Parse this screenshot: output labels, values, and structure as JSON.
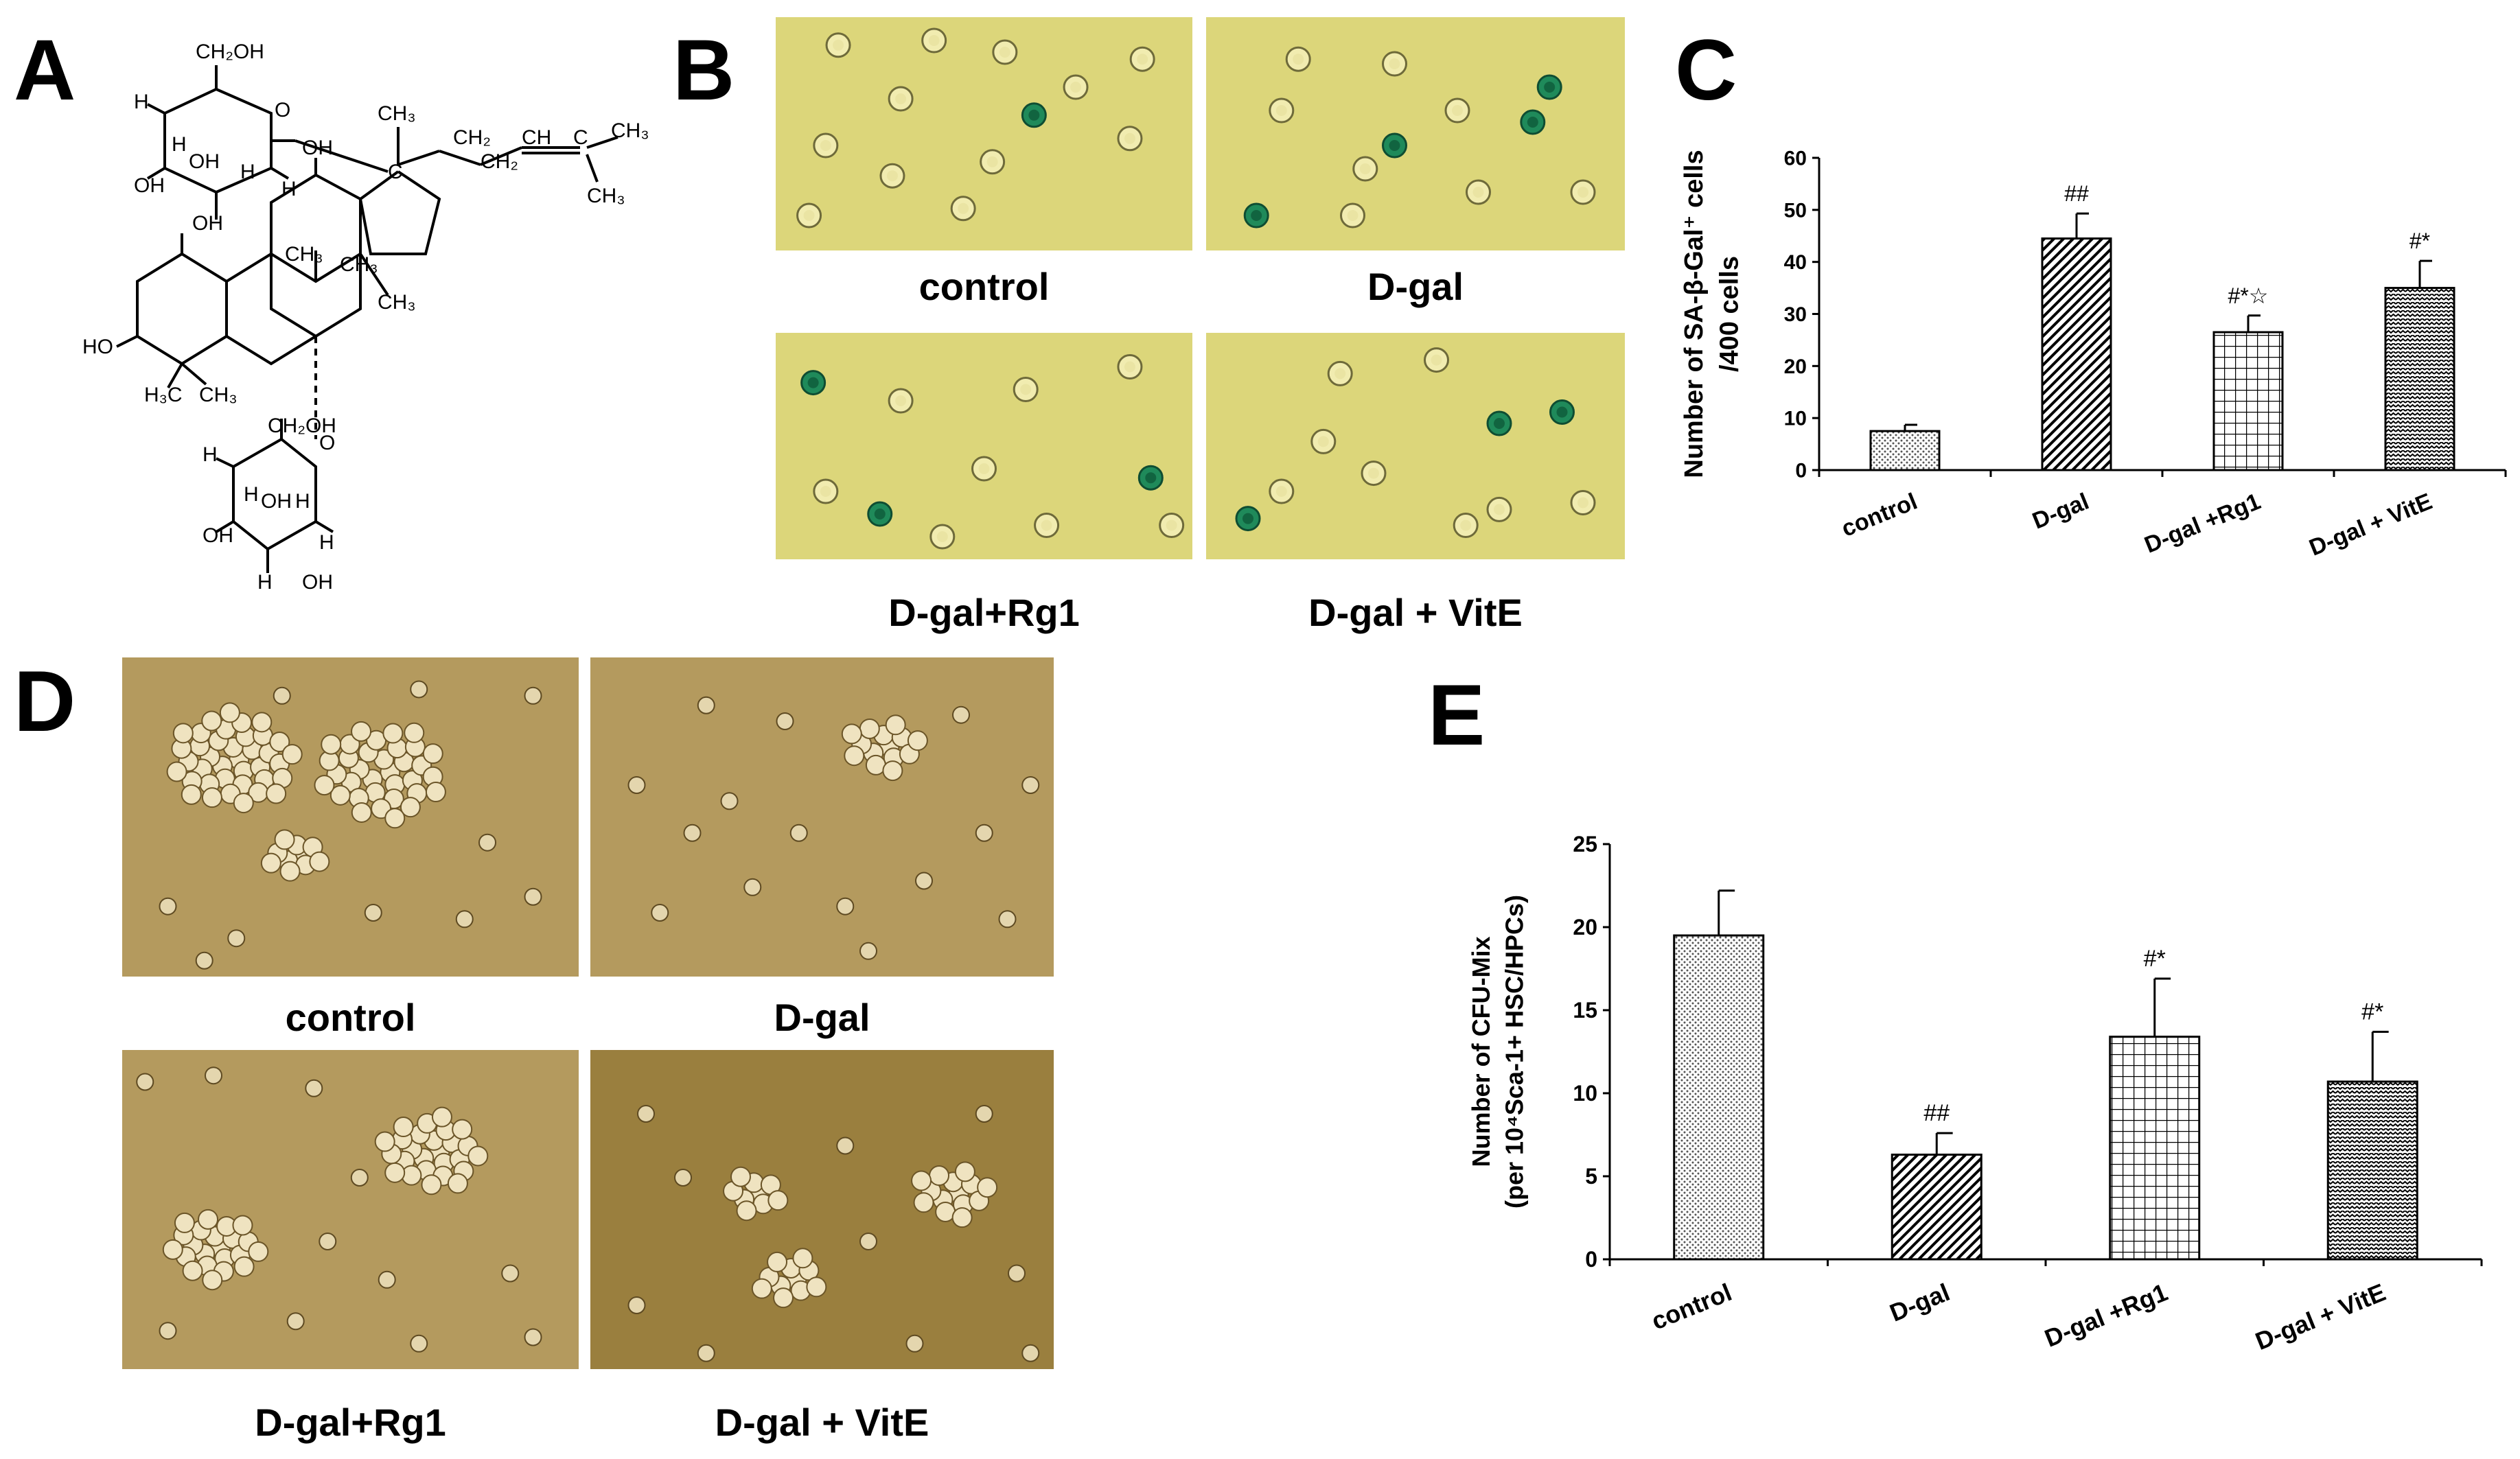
{
  "panels": {
    "A": {
      "letter": "A"
    },
    "B": {
      "letter": "B",
      "images": [
        {
          "caption": "control",
          "cells": [
            [
              0.62,
              0.42,
              true
            ],
            [
              0.15,
              0.12,
              false
            ],
            [
              0.38,
              0.1,
              false
            ],
            [
              0.55,
              0.15,
              false
            ],
            [
              0.12,
              0.55,
              false
            ],
            [
              0.28,
              0.68,
              false
            ],
            [
              0.52,
              0.62,
              false
            ],
            [
              0.85,
              0.52,
              false
            ],
            [
              0.08,
              0.85,
              false
            ],
            [
              0.45,
              0.82,
              false
            ],
            [
              0.72,
              0.3,
              false
            ],
            [
              0.88,
              0.18,
              false
            ],
            [
              0.3,
              0.35,
              false
            ]
          ]
        },
        {
          "caption": "D-gal",
          "cells": [
            [
              0.82,
              0.3,
              true
            ],
            [
              0.78,
              0.45,
              true
            ],
            [
              0.45,
              0.55,
              true
            ],
            [
              0.12,
              0.85,
              true
            ],
            [
              0.38,
              0.65,
              false
            ],
            [
              0.6,
              0.4,
              false
            ],
            [
              0.22,
              0.18,
              false
            ],
            [
              0.45,
              0.2,
              false
            ],
            [
              0.18,
              0.4,
              false
            ],
            [
              0.65,
              0.75,
              false
            ],
            [
              0.35,
              0.85,
              false
            ],
            [
              0.9,
              0.75,
              false
            ]
          ]
        },
        {
          "caption": "D-gal+Rg1",
          "cells": [
            [
              0.09,
              0.22,
              true
            ],
            [
              0.25,
              0.8,
              true
            ],
            [
              0.9,
              0.64,
              true
            ],
            [
              0.85,
              0.15,
              false
            ],
            [
              0.3,
              0.3,
              false
            ],
            [
              0.12,
              0.7,
              false
            ],
            [
              0.5,
              0.6,
              false
            ],
            [
              0.6,
              0.25,
              false
            ],
            [
              0.65,
              0.85,
              false
            ],
            [
              0.4,
              0.9,
              false
            ],
            [
              0.95,
              0.85,
              false
            ]
          ]
        },
        {
          "caption": "D-gal + VitE",
          "cells": [
            [
              0.85,
              0.35,
              true
            ],
            [
              0.7,
              0.4,
              true
            ],
            [
              0.1,
              0.82,
              true
            ],
            [
              0.32,
              0.18,
              false
            ],
            [
              0.28,
              0.48,
              false
            ],
            [
              0.7,
              0.78,
              false
            ],
            [
              0.62,
              0.85,
              false
            ],
            [
              0.9,
              0.75,
              false
            ],
            [
              0.55,
              0.12,
              false
            ],
            [
              0.18,
              0.7,
              false
            ],
            [
              0.4,
              0.62,
              false
            ]
          ]
        }
      ]
    },
    "C": {
      "letter": "C"
    },
    "D": {
      "letter": "D",
      "images": [
        {
          "caption": "control",
          "clusters": [
            [
              0.24,
              0.32,
              0.14,
              38
            ],
            [
              0.57,
              0.36,
              0.14,
              34
            ],
            [
              0.38,
              0.62,
              0.06,
              10
            ]
          ],
          "cells": [
            [
              0.65,
              0.1
            ],
            [
              0.9,
              0.12
            ],
            [
              0.35,
              0.12
            ],
            [
              0.1,
              0.78
            ],
            [
              0.25,
              0.88
            ],
            [
              0.55,
              0.8
            ],
            [
              0.75,
              0.82
            ],
            [
              0.9,
              0.75
            ],
            [
              0.8,
              0.58
            ],
            [
              0.18,
              0.95
            ]
          ]
        },
        {
          "caption": "D-gal",
          "clusters": [
            [
              0.63,
              0.28,
              0.08,
              14
            ]
          ],
          "cells": [
            [
              0.1,
              0.4
            ],
            [
              0.22,
              0.55
            ],
            [
              0.3,
              0.45
            ],
            [
              0.45,
              0.55
            ],
            [
              0.35,
              0.72
            ],
            [
              0.15,
              0.8
            ],
            [
              0.55,
              0.78
            ],
            [
              0.72,
              0.7
            ],
            [
              0.85,
              0.55
            ],
            [
              0.9,
              0.82
            ],
            [
              0.42,
              0.2
            ],
            [
              0.25,
              0.15
            ],
            [
              0.8,
              0.18
            ],
            [
              0.95,
              0.4
            ],
            [
              0.6,
              0.92
            ]
          ]
        },
        {
          "caption": "D-gal+Rg1",
          "clusters": [
            [
              0.68,
              0.32,
              0.11,
              26
            ],
            [
              0.2,
              0.62,
              0.1,
              22
            ]
          ],
          "cells": [
            [
              0.05,
              0.1
            ],
            [
              0.2,
              0.08
            ],
            [
              0.42,
              0.12
            ],
            [
              0.52,
              0.4
            ],
            [
              0.45,
              0.6
            ],
            [
              0.58,
              0.72
            ],
            [
              0.38,
              0.85
            ],
            [
              0.1,
              0.88
            ],
            [
              0.85,
              0.7
            ],
            [
              0.9,
              0.9
            ],
            [
              0.65,
              0.92
            ]
          ]
        },
        {
          "caption": "D-gal + VitE",
          "clusters": [
            [
              0.35,
              0.45,
              0.06,
              9
            ],
            [
              0.43,
              0.72,
              0.07,
              11
            ],
            [
              0.78,
              0.45,
              0.08,
              14
            ]
          ],
          "cells": [
            [
              0.12,
              0.2
            ],
            [
              0.2,
              0.4
            ],
            [
              0.55,
              0.3
            ],
            [
              0.6,
              0.6
            ],
            [
              0.85,
              0.2
            ],
            [
              0.92,
              0.7
            ],
            [
              0.1,
              0.8
            ],
            [
              0.25,
              0.95
            ],
            [
              0.7,
              0.92
            ],
            [
              0.95,
              0.95
            ]
          ]
        }
      ]
    },
    "E": {
      "letter": "E"
    }
  },
  "chart_data": [
    {
      "id": "C",
      "type": "bar",
      "categories": [
        "control",
        "D-gal",
        "D-gal +Rg1",
        "D-gal + VitE"
      ],
      "values": [
        7.5,
        44.5,
        26.5,
        35
      ],
      "errors": [
        1.2,
        4.8,
        3.2,
        5.2
      ],
      "significance": [
        "",
        "##",
        "#*☆",
        "#*"
      ],
      "ylabel_lines": [
        "Number of SA-β-Gal⁺ cells",
        "/400 cells"
      ],
      "ylim": [
        0,
        60
      ],
      "yticks": [
        0,
        10,
        20,
        30,
        40,
        50,
        60
      ],
      "patterns": [
        "dots",
        "diagonal",
        "grid",
        "zigzag"
      ]
    },
    {
      "id": "E",
      "type": "bar",
      "categories": [
        "control",
        "D-gal",
        "D-gal +Rg1",
        "D-gal + VitE"
      ],
      "values": [
        19.5,
        6.3,
        13.4,
        10.7
      ],
      "errors": [
        2.7,
        1.3,
        3.5,
        3.0
      ],
      "significance": [
        "",
        "##",
        "#*",
        "#*"
      ],
      "ylabel_lines": [
        "Number of CFU-Mix",
        "(per 10⁴Sca-1+ HSC/HPCs)"
      ],
      "ylim": [
        0,
        25
      ],
      "yticks": [
        0,
        5,
        10,
        15,
        20,
        25
      ],
      "patterns": [
        "dots",
        "diagonal",
        "grid",
        "zigzag"
      ]
    }
  ]
}
